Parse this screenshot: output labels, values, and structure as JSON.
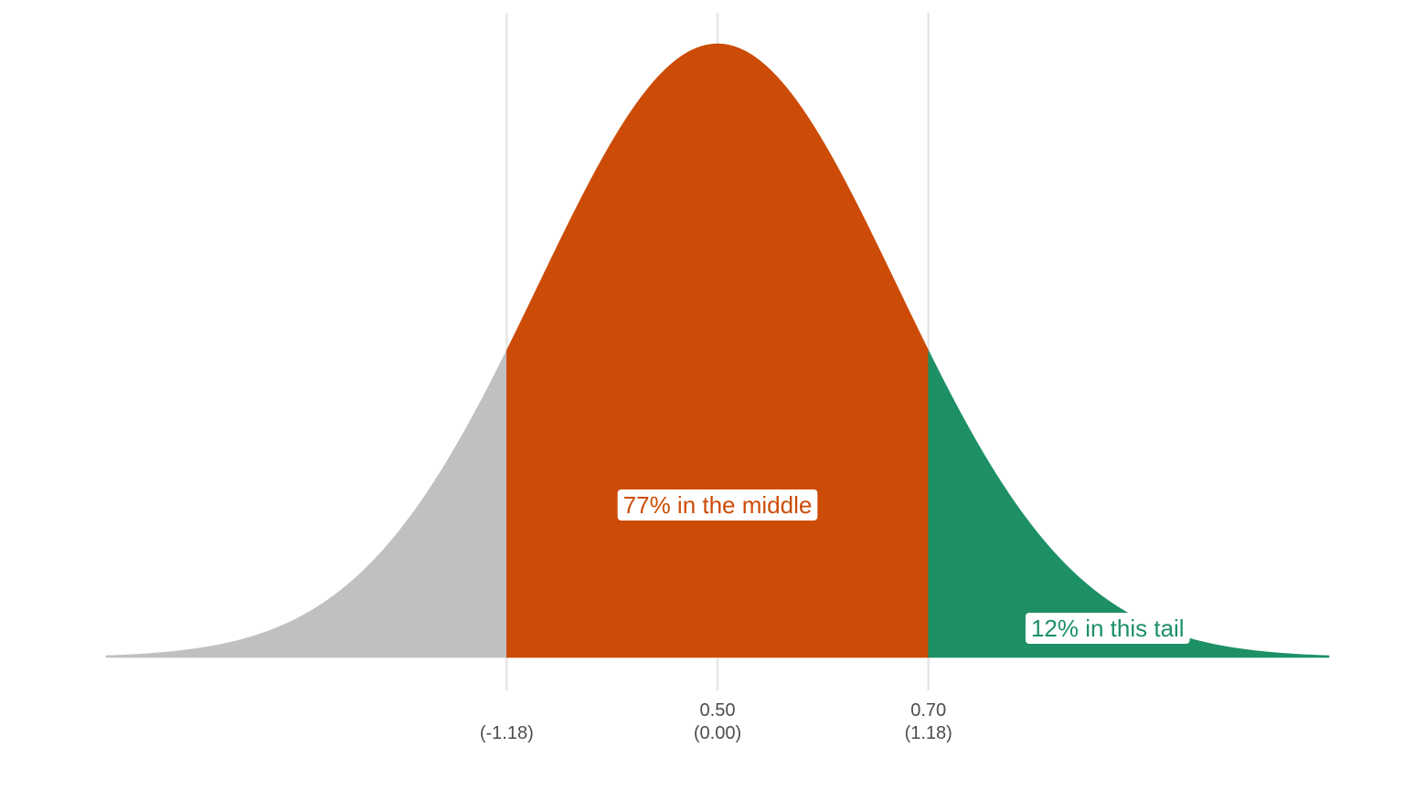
{
  "chart_data": {
    "type": "area",
    "title": "",
    "xlabel": "",
    "ylabel": "",
    "distribution": "normal",
    "mean": 0.5,
    "sd": 0.17,
    "xlim": [
      -0.08,
      1.08
    ],
    "grid": "vertical",
    "regions": [
      {
        "name": "left tail",
        "from": -0.08,
        "to": 0.3,
        "color": "#c0c0c0"
      },
      {
        "name": "middle",
        "from": 0.3,
        "to": 0.7,
        "color": "#cc4c07"
      },
      {
        "name": "right tail",
        "from": 0.7,
        "to": 1.08,
        "color": "#1d9065"
      }
    ],
    "ticks": [
      {
        "value": 0.3,
        "label": "",
        "z_label": "(-1.18)"
      },
      {
        "value": 0.5,
        "label": "0.50",
        "z_label": "(0.00)"
      },
      {
        "value": 0.7,
        "label": "0.70",
        "z_label": "(1.18)"
      }
    ],
    "annotations": [
      {
        "text": "77% in the middle",
        "x": 0.5,
        "y_fraction_of_peak": 0.25,
        "color": "#cc4c07"
      },
      {
        "text": "12% in this tail",
        "x": 0.87,
        "y_fraction_of_peak": 0.05,
        "color": "#1d9065"
      }
    ]
  }
}
